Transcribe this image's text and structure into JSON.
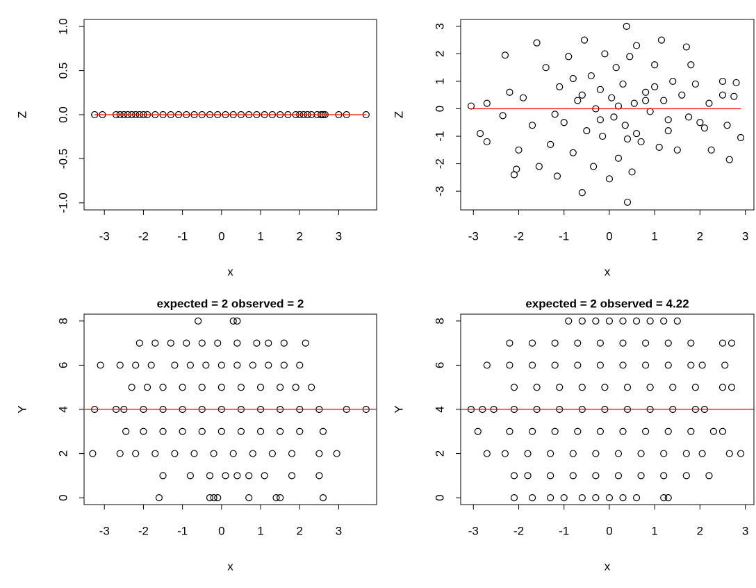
{
  "chart_data": [
    {
      "type": "scatter",
      "x_label": "x",
      "y_label": "Z",
      "color": "black",
      "x": [
        -3.25,
        -3.05,
        -2.7,
        -2.6,
        -2.5,
        -2.4,
        -2.3,
        -2.2,
        -2.1,
        -2.0,
        -1.9,
        -1.7,
        -1.5,
        -1.3,
        -1.1,
        -0.9,
        -0.7,
        -0.5,
        -0.3,
        -0.1,
        0.1,
        0.3,
        0.5,
        0.7,
        0.9,
        1.1,
        1.3,
        1.5,
        1.7,
        1.9,
        2.0,
        2.1,
        2.2,
        2.3,
        2.45,
        2.55,
        2.6,
        2.65,
        3.0,
        3.2,
        3.7
      ],
      "y": [
        0,
        0,
        0,
        0,
        0,
        0,
        0,
        0,
        0,
        0,
        0,
        0,
        0,
        0,
        0,
        0,
        0,
        0,
        0,
        0,
        0,
        0,
        0,
        0,
        0,
        0,
        0,
        0,
        0,
        0,
        0,
        0,
        0,
        0,
        0,
        0,
        0,
        0,
        0,
        0,
        0
      ],
      "xlim": [
        -3.52,
        3.97
      ],
      "ylim": [
        -1.08,
        1.08
      ],
      "xticks": [
        -3,
        -2,
        -1,
        0,
        1,
        2,
        3
      ],
      "yticks": [
        {
          "value": -1,
          "label": "-1.0"
        },
        {
          "value": -0.5,
          "label": "-0.5"
        },
        {
          "value": 0,
          "label": "0.0"
        },
        {
          "value": 0.5,
          "label": "0.5"
        },
        {
          "value": 1,
          "label": "1.0"
        }
      ],
      "hline": {
        "y": 0,
        "color": "red",
        "span": "data"
      }
    },
    {
      "type": "scatter",
      "x_label": "x",
      "y_label": "Z",
      "color": "black",
      "x": [
        -3.05,
        -2.85,
        -2.7,
        -2.7,
        -2.35,
        -2.3,
        -2.2,
        -2.1,
        -2.05,
        -2.0,
        -1.9,
        -1.7,
        -1.6,
        -1.55,
        -1.4,
        -1.3,
        -1.15,
        -1.1,
        -1.0,
        -0.9,
        -0.8,
        -0.7,
        -0.6,
        -0.55,
        -0.5,
        -0.4,
        -0.35,
        -0.3,
        -0.2,
        -0.15,
        -0.1,
        0.0,
        0.05,
        0.1,
        0.15,
        0.2,
        0.3,
        0.35,
        0.38,
        0.4,
        0.45,
        0.5,
        0.55,
        0.6,
        0.7,
        0.8,
        0.9,
        1.0,
        1.1,
        1.15,
        1.2,
        1.3,
        1.4,
        1.5,
        1.6,
        1.7,
        1.75,
        1.8,
        1.9,
        2.0,
        2.1,
        2.2,
        2.25,
        2.5,
        2.5,
        2.6,
        2.65,
        2.75,
        2.8,
        2.9,
        -0.6,
        -0.2,
        0.2,
        0.6,
        1.0,
        -1.2,
        -0.8,
        0.4,
        0.8,
        1.3
      ],
      "y": [
        0.1,
        -0.9,
        0.2,
        -1.2,
        -0.25,
        1.95,
        0.6,
        -2.4,
        -2.2,
        -1.5,
        0.4,
        -0.6,
        2.4,
        -2.1,
        1.5,
        -1.3,
        -2.45,
        0.8,
        -0.5,
        1.9,
        -1.6,
        0.3,
        -3.05,
        2.5,
        -0.8,
        1.2,
        -2.1,
        0.0,
        0.7,
        -1.0,
        2.0,
        -2.55,
        0.4,
        -0.3,
        1.5,
        -1.8,
        0.9,
        -0.6,
        3.0,
        -3.4,
        1.9,
        -2.3,
        0.2,
        2.3,
        -1.2,
        0.6,
        -0.1,
        1.6,
        -1.4,
        2.5,
        0.3,
        -0.8,
        1.0,
        -1.5,
        0.5,
        2.25,
        -0.3,
        1.6,
        0.9,
        -0.5,
        -0.7,
        0.2,
        -1.5,
        0.5,
        1.0,
        -0.6,
        -1.85,
        0.45,
        0.95,
        -1.05,
        0.5,
        -0.4,
        0.1,
        -0.9,
        0.8,
        -0.2,
        1.1,
        -1.1,
        0.3,
        -0.4
      ],
      "xlim": [
        -3.28,
        3.19
      ],
      "ylim": [
        -3.68,
        3.25
      ],
      "xticks": [
        -3,
        -2,
        -1,
        0,
        1,
        2,
        3
      ],
      "yticks": [
        -3,
        -2,
        -1,
        0,
        1,
        2,
        3
      ],
      "hline": {
        "y": 0,
        "color": "red",
        "span": "data"
      }
    },
    {
      "type": "scatter",
      "title": "expected = 2 observed = 2",
      "x_label": "x",
      "y_label": "Y",
      "color": "black",
      "x": [
        -0.6,
        0.3,
        0.4,
        -2.1,
        -1.7,
        -1.3,
        -0.9,
        -0.5,
        -0.1,
        0.4,
        0.9,
        1.2,
        1.6,
        2.15,
        -3.1,
        -2.6,
        -2.2,
        -1.8,
        -1.2,
        -0.8,
        -0.4,
        0.0,
        0.4,
        0.8,
        1.2,
        1.6,
        2.0,
        -2.3,
        -1.9,
        -1.5,
        -1.0,
        -0.5,
        0.0,
        0.5,
        1.0,
        1.5,
        1.9,
        2.3,
        -3.25,
        -2.7,
        -2.5,
        -2.0,
        -1.5,
        -1.0,
        -0.5,
        0.0,
        0.5,
        1.0,
        1.5,
        2.0,
        2.5,
        3.2,
        3.7,
        -2.45,
        -2.0,
        -1.5,
        -1.0,
        -0.5,
        0.0,
        0.5,
        1.0,
        1.5,
        2.0,
        2.6,
        -3.3,
        -2.6,
        -2.2,
        -1.7,
        -1.2,
        -0.7,
        -0.2,
        0.3,
        0.8,
        1.3,
        1.8,
        2.5,
        2.95,
        -1.5,
        -0.8,
        -0.3,
        0.1,
        0.4,
        0.7,
        1.1,
        1.8,
        2.5,
        -1.6,
        -0.3,
        -0.2,
        -0.1,
        0.7,
        1.4,
        1.5,
        2.6
      ],
      "y": [
        8,
        8,
        8,
        7,
        7,
        7,
        7,
        7,
        7,
        7,
        7,
        7,
        7,
        7,
        6,
        6,
        6,
        6,
        6,
        6,
        6,
        6,
        6,
        6,
        6,
        6,
        6,
        5,
        5,
        5,
        5,
        5,
        5,
        5,
        5,
        5,
        5,
        5,
        4,
        4,
        4,
        4,
        4,
        4,
        4,
        4,
        4,
        4,
        4,
        4,
        4,
        4,
        4,
        3,
        3,
        3,
        3,
        3,
        3,
        3,
        3,
        3,
        3,
        3,
        2,
        2,
        2,
        2,
        2,
        2,
        2,
        2,
        2,
        2,
        2,
        2,
        2,
        1,
        1,
        1,
        1,
        1,
        1,
        1,
        1,
        1,
        0,
        0,
        0,
        0,
        0,
        0,
        0,
        0
      ],
      "xlim": [
        -3.52,
        3.97
      ],
      "ylim": [
        -0.31,
        8.31
      ],
      "xticks": [
        -3,
        -2,
        -1,
        0,
        1,
        2,
        3
      ],
      "yticks": [
        0,
        2,
        4,
        6,
        8
      ],
      "hline": {
        "y": 4,
        "color": "red",
        "span": "full"
      }
    },
    {
      "type": "scatter",
      "title": "expected = 2 observed = 4.22",
      "x_label": "x",
      "y_label": "Y",
      "color": "black",
      "x": [
        -0.9,
        -0.6,
        -0.3,
        0.0,
        0.3,
        0.6,
        0.9,
        1.2,
        1.5,
        -2.2,
        -1.7,
        -1.2,
        -0.7,
        -0.2,
        0.3,
        0.8,
        1.3,
        1.8,
        2.5,
        2.7,
        -2.7,
        -2.2,
        -1.7,
        -1.2,
        -0.7,
        -0.2,
        0.3,
        0.8,
        1.3,
        1.8,
        2.05,
        2.55,
        -2.1,
        -1.6,
        -1.1,
        -0.6,
        -0.1,
        0.4,
        0.9,
        1.4,
        1.9,
        2.5,
        2.7,
        -3.05,
        -2.8,
        -2.55,
        -2.1,
        -1.6,
        -1.1,
        -0.6,
        -0.1,
        0.4,
        0.9,
        1.4,
        1.9,
        2.1,
        -2.9,
        -2.2,
        -1.7,
        -1.2,
        -0.7,
        -0.2,
        0.3,
        0.8,
        1.3,
        1.8,
        2.3,
        2.5,
        -2.7,
        -2.3,
        -1.8,
        -1.3,
        -0.8,
        -0.3,
        0.2,
        0.7,
        1.2,
        1.7,
        2.05,
        2.65,
        2.9,
        -2.1,
        -1.8,
        -1.3,
        -0.8,
        -0.3,
        0.2,
        0.7,
        1.2,
        1.7,
        2.2,
        -2.1,
        -1.7,
        -1.3,
        -1.0,
        -0.6,
        -0.3,
        0.0,
        0.3,
        0.6,
        1.2,
        1.3
      ],
      "y": [
        8,
        8,
        8,
        8,
        8,
        8,
        8,
        8,
        8,
        7,
        7,
        7,
        7,
        7,
        7,
        7,
        7,
        7,
        7,
        7,
        6,
        6,
        6,
        6,
        6,
        6,
        6,
        6,
        6,
        6,
        6,
        6,
        5,
        5,
        5,
        5,
        5,
        5,
        5,
        5,
        5,
        5,
        5,
        4,
        4,
        4,
        4,
        4,
        4,
        4,
        4,
        4,
        4,
        4,
        4,
        4,
        3,
        3,
        3,
        3,
        3,
        3,
        3,
        3,
        3,
        3,
        3,
        3,
        2,
        2,
        2,
        2,
        2,
        2,
        2,
        2,
        2,
        2,
        2,
        2,
        2,
        1,
        1,
        1,
        1,
        1,
        1,
        1,
        1,
        1,
        1,
        0,
        0,
        0,
        0,
        0,
        0,
        0,
        0,
        0,
        0,
        0
      ],
      "xlim": [
        -3.28,
        3.19
      ],
      "ylim": [
        -0.31,
        8.31
      ],
      "xticks": [
        -3,
        -2,
        -1,
        0,
        1,
        2,
        3
      ],
      "yticks": [
        0,
        2,
        4,
        6,
        8
      ],
      "hline": {
        "y": 4,
        "color": "red",
        "span": "full"
      }
    }
  ]
}
